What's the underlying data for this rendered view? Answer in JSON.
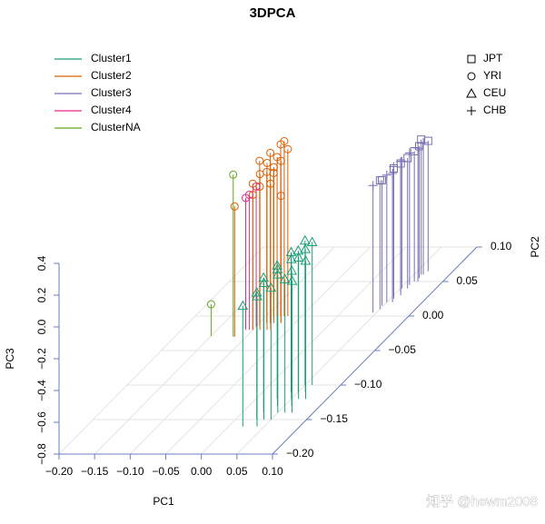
{
  "chart_data": {
    "type": "scatter3d",
    "title": "3DPCA",
    "x_label": "PC1",
    "y_label": "PC2",
    "z_label": "PC3",
    "watermark": "知乎 @hewm2008",
    "xlim": [
      -0.2,
      0.1
    ],
    "ylim": [
      -0.2,
      0.1
    ],
    "zlim": [
      -0.8,
      0.4
    ],
    "xticks": [
      {
        "value": -0.2,
        "label": "−0.20"
      },
      {
        "value": -0.15,
        "label": "−0.15"
      },
      {
        "value": -0.1,
        "label": "−0.10"
      },
      {
        "value": -0.05,
        "label": "−0.05"
      },
      {
        "value": 0,
        "label": "0.00"
      },
      {
        "value": 0.05,
        "label": "0.05"
      },
      {
        "value": 0.1,
        "label": "0.10"
      }
    ],
    "yticks": [
      {
        "value": -0.2,
        "label": "−0.20"
      },
      {
        "value": -0.15,
        "label": "−0.15"
      },
      {
        "value": -0.1,
        "label": "−0.10"
      },
      {
        "value": -0.05,
        "label": "−0.05"
      },
      {
        "value": 0,
        "label": "0.00"
      },
      {
        "value": 0.05,
        "label": "0.05"
      },
      {
        "value": 0.1,
        "label": "0.10"
      }
    ],
    "zticks": [
      {
        "value": -0.8,
        "label": "−0.8"
      },
      {
        "value": -0.6,
        "label": "−0.6"
      },
      {
        "value": -0.4,
        "label": "−0.4"
      },
      {
        "value": -0.2,
        "label": "−0.2"
      },
      {
        "value": 0,
        "label": "0.0"
      },
      {
        "value": 0.2,
        "label": "0.2"
      },
      {
        "value": 0.4,
        "label": "0.4"
      }
    ],
    "grid": true,
    "axis_color": "#6a7fc0",
    "shapes": [
      {
        "name": "JPT",
        "symbol": "square"
      },
      {
        "name": "YRI",
        "symbol": "circle"
      },
      {
        "name": "CEU",
        "symbol": "triangle"
      },
      {
        "name": "CHB",
        "symbol": "plus"
      }
    ],
    "series": [
      {
        "name": "Cluster1",
        "color": "#1b9e77",
        "x": [
          0.02,
          0.03,
          0.04,
          0.05,
          0.03,
          0.06,
          0.04,
          0.05,
          0.06,
          0.07,
          0.05,
          0.06,
          0.04,
          0.07,
          0.05,
          0.06,
          0.06,
          0.05,
          0.03,
          0.04
        ],
        "y": [
          -0.16,
          -0.15,
          -0.16,
          -0.15,
          -0.14,
          -0.14,
          -0.13,
          -0.12,
          -0.13,
          -0.12,
          -0.11,
          -0.11,
          -0.15,
          -0.14,
          -0.14,
          -0.12,
          -0.1,
          -0.1,
          -0.12,
          -0.11
        ],
        "z": [
          -0.04,
          0,
          0.02,
          0.03,
          0.05,
          0.04,
          0.06,
          0.08,
          0.05,
          0.07,
          0.09,
          0.1,
          0.06,
          0.03,
          0.07,
          0.09,
          0.1,
          0.11,
          0.04,
          0.08
        ],
        "shape": [
          2,
          2,
          2,
          2,
          2,
          2,
          2,
          2,
          2,
          2,
          2,
          2,
          2,
          2,
          2,
          2,
          2,
          2,
          2,
          2
        ]
      },
      {
        "name": "Cluster2",
        "color": "#d95f02",
        "x": [
          -0.116,
          -0.1,
          -0.09,
          -0.1,
          -0.09,
          -0.08,
          -0.085,
          -0.08,
          -0.075,
          -0.07,
          -0.09,
          -0.1,
          -0.08,
          -0.07,
          -0.095,
          -0.085,
          -0.075,
          -0.07
        ],
        "y": [
          -0.03,
          -0.02,
          -0.02,
          -0.01,
          -0.01,
          -0.02,
          0,
          0,
          0,
          -0.01,
          0,
          -0.02,
          -0.01,
          0,
          -0.015,
          -0.01,
          -0.02,
          -0.01
        ],
        "z": [
          0.02,
          0.12,
          0.18,
          0.22,
          0.15,
          0.25,
          0.2,
          0.28,
          0.3,
          0.22,
          0.1,
          0.05,
          0.18,
          0.25,
          0.08,
          0.27,
          0.12,
          0
        ],
        "shape": [
          1,
          1,
          1,
          1,
          1,
          1,
          1,
          1,
          1,
          1,
          1,
          1,
          1,
          1,
          1,
          1,
          1,
          1
        ]
      },
      {
        "name": "Cluster3",
        "color": "#7570b3",
        "x": [
          0.045,
          0.05,
          0.05,
          0.055,
          0.05,
          0.06,
          0.055,
          0.06,
          0.058,
          0.06,
          0.065,
          0.062,
          0.063,
          0.065,
          0.048,
          0.052,
          0.058,
          0.06
        ],
        "y": [
          0.005,
          0.01,
          0.02,
          0.025,
          0.03,
          0.03,
          0.035,
          0.04,
          0.045,
          0.05,
          0.05,
          0.055,
          0.06,
          0.065,
          0.015,
          0.04,
          0.02,
          0.06
        ],
        "z": [
          0,
          0.01,
          0,
          0.02,
          0.01,
          0.03,
          0.02,
          0.02,
          0.03,
          0.02,
          0.04,
          0.03,
          0.03,
          0.02,
          -0.01,
          0,
          0.01,
          0.05
        ],
        "shape": [
          3,
          0,
          3,
          0,
          3,
          0,
          3,
          0,
          3,
          0,
          3,
          0,
          3,
          0,
          0,
          3,
          3,
          0
        ]
      },
      {
        "name": "Cluster4",
        "color": "#e7298a",
        "x": [
          -0.105,
          -0.1,
          -0.11
        ],
        "y": [
          -0.02,
          -0.015,
          -0.02
        ],
        "z": [
          0.05,
          0.08,
          0.03
        ],
        "shape": [
          1,
          1,
          1
        ]
      },
      {
        "name": "ClusterNA",
        "color": "#66a61e",
        "x": [
          -0.15,
          -0.118
        ],
        "y": [
          -0.029,
          -0.03
        ],
        "z": [
          -0.6,
          0.22
        ],
        "shape": [
          1,
          1
        ]
      }
    ]
  }
}
